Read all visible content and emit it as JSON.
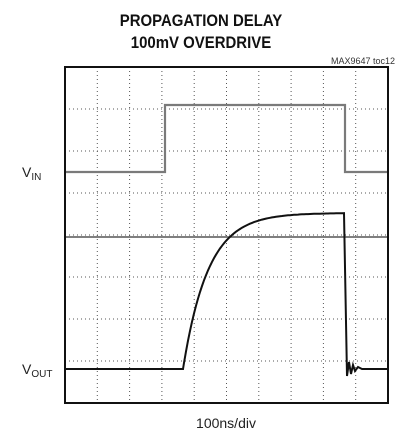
{
  "title": [
    "PROPAGATION DELAY",
    "100mV OVERDRIVE"
  ],
  "note": "MAX9647 toc12",
  "traces": [
    {
      "main": "V",
      "sub": "IN"
    },
    {
      "main": "V",
      "sub": "OUT"
    }
  ],
  "x_label": "100ns/div"
}
